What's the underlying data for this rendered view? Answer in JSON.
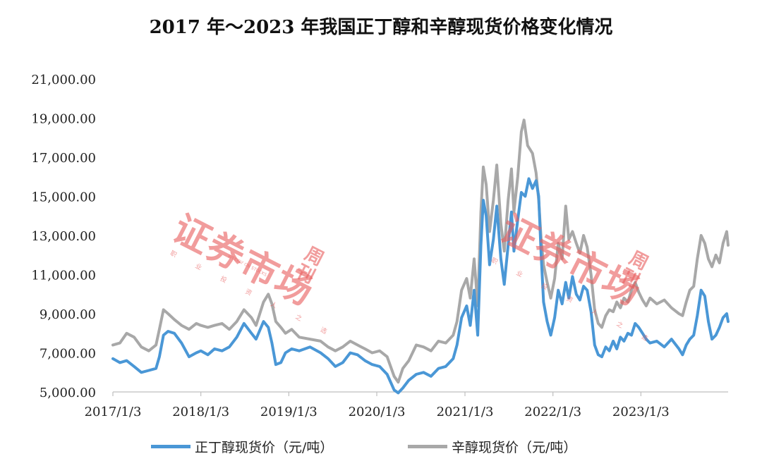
{
  "chart_data": {
    "type": "line",
    "title": "2017 年～2023 年我国正丁醇和辛醇现货价格变化情况",
    "ylim": [
      5000,
      21000
    ],
    "yticks": [
      "5,000.00",
      "7,000.00",
      "9,000.00",
      "11,000.00",
      "13,000.00",
      "15,000.00",
      "17,000.00",
      "19,000.00",
      "21,000.00"
    ],
    "ytick_values": [
      5000,
      7000,
      9000,
      11000,
      13000,
      15000,
      17000,
      19000,
      21000
    ],
    "xlim": [
      "2017-01-03",
      "2023-12-31"
    ],
    "xticks": [
      "2017/1/3",
      "2018/1/3",
      "2019/1/3",
      "2020/1/3",
      "2021/1/3",
      "2022/1/3",
      "2023/1/3"
    ],
    "xtick_dates": [
      "2017-01-03",
      "2018-01-03",
      "2019-01-03",
      "2020-01-03",
      "2021-01-03",
      "2022-01-03",
      "2023-01-03"
    ],
    "grid": false,
    "legend_position": "bottom",
    "series": [
      {
        "name": "正丁醇现货价（元/吨）",
        "color": "#4a97d6",
        "points": [
          [
            "2017-01-03",
            6700
          ],
          [
            "2017-02-01",
            6500
          ],
          [
            "2017-03-01",
            6600
          ],
          [
            "2017-04-01",
            6300
          ],
          [
            "2017-05-01",
            6000
          ],
          [
            "2017-06-01",
            6100
          ],
          [
            "2017-07-01",
            6200
          ],
          [
            "2017-07-15",
            6800
          ],
          [
            "2017-08-01",
            7900
          ],
          [
            "2017-08-20",
            8100
          ],
          [
            "2017-09-15",
            8000
          ],
          [
            "2017-10-15",
            7500
          ],
          [
            "2017-11-15",
            6800
          ],
          [
            "2017-12-15",
            7000
          ],
          [
            "2018-01-03",
            7100
          ],
          [
            "2018-02-01",
            6900
          ],
          [
            "2018-03-01",
            7200
          ],
          [
            "2018-04-01",
            7100
          ],
          [
            "2018-05-01",
            7300
          ],
          [
            "2018-06-01",
            7800
          ],
          [
            "2018-07-01",
            8500
          ],
          [
            "2018-08-01",
            8000
          ],
          [
            "2018-08-20",
            7700
          ],
          [
            "2018-09-20",
            8600
          ],
          [
            "2018-10-10",
            8300
          ],
          [
            "2018-10-25",
            7500
          ],
          [
            "2018-11-10",
            6400
          ],
          [
            "2018-12-01",
            6500
          ],
          [
            "2018-12-20",
            7000
          ],
          [
            "2019-01-15",
            7200
          ],
          [
            "2019-02-15",
            7100
          ],
          [
            "2019-04-01",
            7300
          ],
          [
            "2019-05-15",
            7000
          ],
          [
            "2019-06-15",
            6700
          ],
          [
            "2019-07-15",
            6300
          ],
          [
            "2019-08-15",
            6500
          ],
          [
            "2019-09-15",
            7000
          ],
          [
            "2019-10-15",
            6900
          ],
          [
            "2019-11-15",
            6600
          ],
          [
            "2019-12-15",
            6400
          ],
          [
            "2020-01-15",
            6300
          ],
          [
            "2020-02-15",
            5900
          ],
          [
            "2020-03-15",
            5100
          ],
          [
            "2020-04-01",
            4950
          ],
          [
            "2020-04-20",
            5200
          ],
          [
            "2020-05-15",
            5600
          ],
          [
            "2020-06-15",
            5900
          ],
          [
            "2020-07-15",
            6000
          ],
          [
            "2020-08-15",
            5800
          ],
          [
            "2020-09-15",
            6200
          ],
          [
            "2020-10-15",
            6300
          ],
          [
            "2020-11-15",
            6700
          ],
          [
            "2020-12-01",
            7400
          ],
          [
            "2020-12-20",
            8800
          ],
          [
            "2021-01-10",
            9400
          ],
          [
            "2021-01-25",
            8400
          ],
          [
            "2021-02-10",
            10200
          ],
          [
            "2021-02-25",
            7900
          ],
          [
            "2021-03-10",
            12500
          ],
          [
            "2021-03-20",
            14800
          ],
          [
            "2021-04-01",
            14000
          ],
          [
            "2021-04-15",
            11500
          ],
          [
            "2021-05-01",
            12800
          ],
          [
            "2021-05-15",
            14500
          ],
          [
            "2021-06-01",
            11800
          ],
          [
            "2021-06-15",
            10500
          ],
          [
            "2021-07-01",
            12500
          ],
          [
            "2021-07-15",
            14200
          ],
          [
            "2021-07-25",
            12200
          ],
          [
            "2021-08-10",
            13800
          ],
          [
            "2021-08-25",
            15200
          ],
          [
            "2021-09-10",
            15000
          ],
          [
            "2021-09-25",
            15900
          ],
          [
            "2021-10-10",
            15400
          ],
          [
            "2021-10-25",
            15800
          ],
          [
            "2021-11-05",
            15000
          ],
          [
            "2021-11-15",
            12000
          ],
          [
            "2021-11-25",
            9600
          ],
          [
            "2021-12-10",
            8600
          ],
          [
            "2021-12-25",
            7900
          ],
          [
            "2022-01-10",
            8800
          ],
          [
            "2022-01-25",
            10200
          ],
          [
            "2022-02-10",
            9500
          ],
          [
            "2022-02-25",
            10600
          ],
          [
            "2022-03-10",
            9800
          ],
          [
            "2022-03-25",
            10900
          ],
          [
            "2022-04-10",
            10000
          ],
          [
            "2022-04-25",
            9700
          ],
          [
            "2022-05-10",
            10400
          ],
          [
            "2022-05-25",
            10200
          ],
          [
            "2022-06-10",
            9100
          ],
          [
            "2022-06-25",
            7400
          ],
          [
            "2022-07-10",
            6900
          ],
          [
            "2022-07-25",
            6800
          ],
          [
            "2022-08-10",
            7300
          ],
          [
            "2022-08-25",
            7100
          ],
          [
            "2022-09-10",
            7600
          ],
          [
            "2022-09-25",
            7200
          ],
          [
            "2022-10-10",
            7800
          ],
          [
            "2022-10-25",
            7600
          ],
          [
            "2022-11-10",
            8000
          ],
          [
            "2022-11-25",
            7900
          ],
          [
            "2022-12-10",
            8500
          ],
          [
            "2022-12-25",
            8300
          ],
          [
            "2023-01-10",
            8000
          ],
          [
            "2023-01-25",
            7700
          ],
          [
            "2023-02-10",
            7500
          ],
          [
            "2023-03-10",
            7600
          ],
          [
            "2023-04-10",
            7300
          ],
          [
            "2023-05-10",
            7700
          ],
          [
            "2023-06-10",
            7200
          ],
          [
            "2023-06-25",
            6900
          ],
          [
            "2023-07-10",
            7400
          ],
          [
            "2023-07-25",
            7700
          ],
          [
            "2023-08-10",
            7900
          ],
          [
            "2023-08-25",
            8900
          ],
          [
            "2023-09-10",
            10200
          ],
          [
            "2023-09-25",
            9900
          ],
          [
            "2023-10-10",
            8600
          ],
          [
            "2023-10-25",
            7700
          ],
          [
            "2023-11-10",
            7900
          ],
          [
            "2023-11-25",
            8300
          ],
          [
            "2023-12-10",
            8800
          ],
          [
            "2023-12-25",
            9000
          ],
          [
            "2023-12-31",
            8600
          ]
        ]
      },
      {
        "name": "辛醇现货价（元/吨）",
        "color": "#a8a8a8",
        "points": [
          [
            "2017-01-03",
            7400
          ],
          [
            "2017-02-01",
            7500
          ],
          [
            "2017-03-01",
            8000
          ],
          [
            "2017-04-01",
            7800
          ],
          [
            "2017-05-01",
            7300
          ],
          [
            "2017-06-01",
            7100
          ],
          [
            "2017-07-01",
            7400
          ],
          [
            "2017-07-15",
            8200
          ],
          [
            "2017-08-01",
            9200
          ],
          [
            "2017-08-20",
            9000
          ],
          [
            "2017-09-15",
            8700
          ],
          [
            "2017-10-15",
            8400
          ],
          [
            "2017-11-15",
            8200
          ],
          [
            "2017-12-15",
            8500
          ],
          [
            "2018-01-03",
            8400
          ],
          [
            "2018-02-01",
            8300
          ],
          [
            "2018-03-01",
            8400
          ],
          [
            "2018-04-01",
            8500
          ],
          [
            "2018-05-01",
            8200
          ],
          [
            "2018-06-01",
            8600
          ],
          [
            "2018-07-01",
            9200
          ],
          [
            "2018-08-01",
            8800
          ],
          [
            "2018-08-20",
            8400
          ],
          [
            "2018-09-20",
            9600
          ],
          [
            "2018-10-10",
            10000
          ],
          [
            "2018-10-25",
            9500
          ],
          [
            "2018-11-10",
            8600
          ],
          [
            "2018-12-01",
            8300
          ],
          [
            "2018-12-20",
            8000
          ],
          [
            "2019-01-15",
            8200
          ],
          [
            "2019-02-15",
            7800
          ],
          [
            "2019-04-01",
            7700
          ],
          [
            "2019-05-15",
            7600
          ],
          [
            "2019-06-15",
            7300
          ],
          [
            "2019-07-15",
            7100
          ],
          [
            "2019-08-15",
            7300
          ],
          [
            "2019-09-15",
            7600
          ],
          [
            "2019-10-15",
            7400
          ],
          [
            "2019-11-15",
            7200
          ],
          [
            "2019-12-15",
            7000
          ],
          [
            "2020-01-15",
            7100
          ],
          [
            "2020-02-15",
            6800
          ],
          [
            "2020-03-15",
            5800
          ],
          [
            "2020-04-01",
            5500
          ],
          [
            "2020-04-20",
            6200
          ],
          [
            "2020-05-15",
            6600
          ],
          [
            "2020-06-15",
            7400
          ],
          [
            "2020-07-15",
            7300
          ],
          [
            "2020-08-15",
            7100
          ],
          [
            "2020-09-15",
            7600
          ],
          [
            "2020-10-15",
            7500
          ],
          [
            "2020-11-15",
            7900
          ],
          [
            "2020-12-01",
            8600
          ],
          [
            "2020-12-20",
            10200
          ],
          [
            "2021-01-10",
            10800
          ],
          [
            "2021-01-25",
            9800
          ],
          [
            "2021-02-10",
            11800
          ],
          [
            "2021-02-25",
            9400
          ],
          [
            "2021-03-10",
            14200
          ],
          [
            "2021-03-20",
            16500
          ],
          [
            "2021-04-01",
            15600
          ],
          [
            "2021-04-15",
            13200
          ],
          [
            "2021-05-01",
            14800
          ],
          [
            "2021-05-15",
            16600
          ],
          [
            "2021-06-01",
            13600
          ],
          [
            "2021-06-15",
            12200
          ],
          [
            "2021-07-01",
            14800
          ],
          [
            "2021-07-15",
            16400
          ],
          [
            "2021-07-25",
            14200
          ],
          [
            "2021-08-10",
            16000
          ],
          [
            "2021-08-25",
            18300
          ],
          [
            "2021-09-05",
            18900
          ],
          [
            "2021-09-20",
            17600
          ],
          [
            "2021-10-10",
            17200
          ],
          [
            "2021-10-25",
            16200
          ],
          [
            "2021-11-05",
            14800
          ],
          [
            "2021-11-15",
            12800
          ],
          [
            "2021-11-25",
            11500
          ],
          [
            "2021-12-10",
            10600
          ],
          [
            "2021-12-25",
            9800
          ],
          [
            "2022-01-10",
            10800
          ],
          [
            "2022-01-25",
            12600
          ],
          [
            "2022-02-10",
            11800
          ],
          [
            "2022-02-25",
            14500
          ],
          [
            "2022-03-10",
            12800
          ],
          [
            "2022-03-25",
            13200
          ],
          [
            "2022-04-10",
            12600
          ],
          [
            "2022-04-25",
            12100
          ],
          [
            "2022-05-10",
            13000
          ],
          [
            "2022-05-25",
            12400
          ],
          [
            "2022-06-10",
            11000
          ],
          [
            "2022-06-25",
            9200
          ],
          [
            "2022-07-10",
            8500
          ],
          [
            "2022-07-25",
            8300
          ],
          [
            "2022-08-10",
            8900
          ],
          [
            "2022-08-25",
            9200
          ],
          [
            "2022-09-10",
            9100
          ],
          [
            "2022-09-25",
            9600
          ],
          [
            "2022-10-10",
            9300
          ],
          [
            "2022-10-25",
            9800
          ],
          [
            "2022-11-10",
            9600
          ],
          [
            "2022-11-25",
            10200
          ],
          [
            "2022-12-10",
            10600
          ],
          [
            "2022-12-25",
            10100
          ],
          [
            "2023-01-10",
            9700
          ],
          [
            "2023-01-25",
            9400
          ],
          [
            "2023-02-10",
            9800
          ],
          [
            "2023-03-10",
            9500
          ],
          [
            "2023-04-10",
            9700
          ],
          [
            "2023-05-10",
            9300
          ],
          [
            "2023-06-10",
            9000
          ],
          [
            "2023-06-25",
            8900
          ],
          [
            "2023-07-10",
            9600
          ],
          [
            "2023-07-25",
            10200
          ],
          [
            "2023-08-10",
            10400
          ],
          [
            "2023-08-25",
            11800
          ],
          [
            "2023-09-10",
            13000
          ],
          [
            "2023-09-25",
            12600
          ],
          [
            "2023-10-10",
            11800
          ],
          [
            "2023-10-25",
            11400
          ],
          [
            "2023-11-10",
            12000
          ],
          [
            "2023-11-25",
            11600
          ],
          [
            "2023-12-10",
            12600
          ],
          [
            "2023-12-25",
            13200
          ],
          [
            "2023-12-31",
            12500
          ]
        ]
      }
    ]
  },
  "watermark": {
    "text": "证券市场",
    "side": "周刊",
    "subtitle": "职 业 投 资 人 之 选",
    "small_en": "WEEKLY ON STOCKS",
    "color": "#e86060"
  }
}
